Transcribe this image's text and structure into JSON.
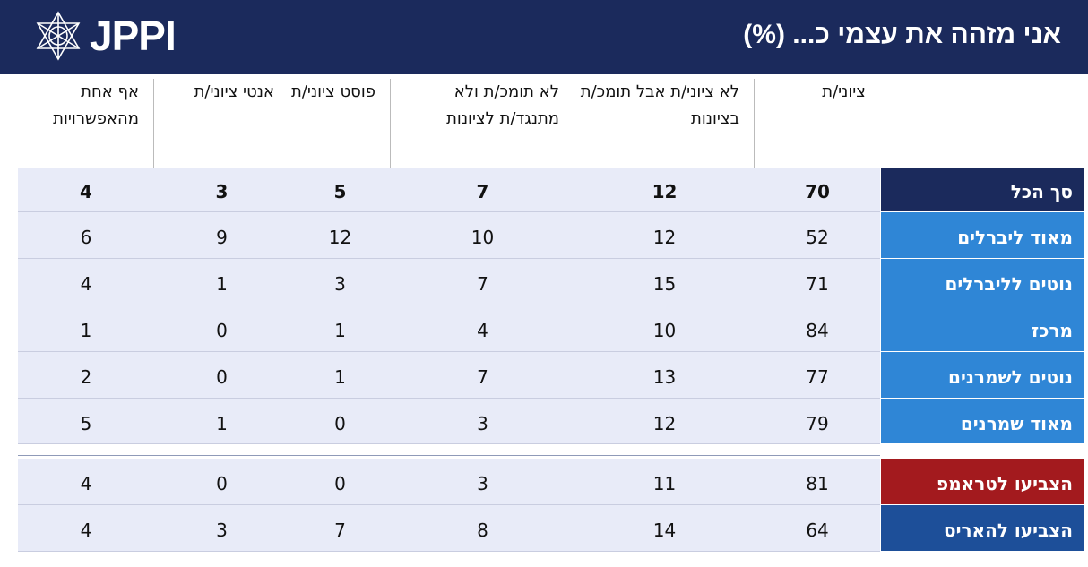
{
  "header": {
    "logo_text": "JPPI",
    "title": "אני מזהה את עצמי כ... (%)"
  },
  "columns": [
    "ציוני/ת",
    "לא ציוני/ת אבל תומכ/ת בציונות",
    "לא תומכ/ת ולא מתנגד/ת לציונות",
    "פוסט ציוני/ת",
    "אנטי ציוני/ת",
    "אף אחת מהאפשרויות"
  ],
  "rows": [
    {
      "label": "סך הכל",
      "values": [
        "70",
        "12",
        "7",
        "5",
        "3",
        "4"
      ],
      "color": "#1b2a5c"
    },
    {
      "label": "מאוד ליברלים",
      "values": [
        "52",
        "12",
        "10",
        "12",
        "9",
        "6"
      ],
      "color": "#2f86d6"
    },
    {
      "label": "נוטים לליברלים",
      "values": [
        "71",
        "15",
        "7",
        "3",
        "1",
        "4"
      ],
      "color": "#2f86d6"
    },
    {
      "label": "מרכז",
      "values": [
        "84",
        "10",
        "4",
        "1",
        "0",
        "1"
      ],
      "color": "#2f86d6"
    },
    {
      "label": "נוטים לשמרנים",
      "values": [
        "77",
        "13",
        "7",
        "1",
        "0",
        "2"
      ],
      "color": "#2f86d6"
    },
    {
      "label": "מאוד שמרנים",
      "values": [
        "79",
        "12",
        "3",
        "0",
        "1",
        "5"
      ],
      "color": "#2f86d6"
    },
    {
      "label": "הצביעו לטראמפ",
      "values": [
        "81",
        "11",
        "3",
        "0",
        "0",
        "4"
      ],
      "color": "#a31a1e"
    },
    {
      "label": "הצביעו להאריס",
      "values": [
        "64",
        "14",
        "8",
        "7",
        "3",
        "4"
      ],
      "color": "#1d4f99"
    }
  ]
}
